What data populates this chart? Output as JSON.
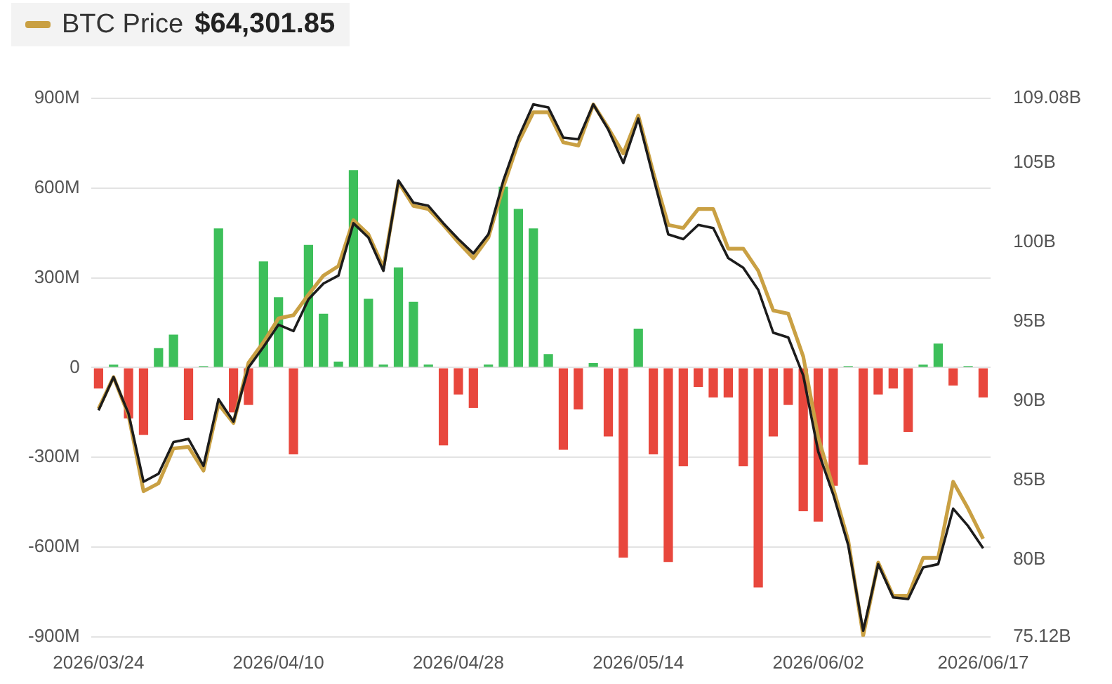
{
  "chart_data": {
    "type": "bar",
    "categories": [
      "2026/03/24",
      null,
      null,
      null,
      null,
      null,
      null,
      null,
      null,
      null,
      null,
      null,
      "2026/04/10",
      null,
      null,
      null,
      null,
      null,
      null,
      null,
      null,
      null,
      null,
      null,
      "2026/04/28",
      null,
      null,
      null,
      null,
      null,
      null,
      null,
      null,
      null,
      null,
      null,
      "2026/05/14",
      null,
      null,
      null,
      null,
      null,
      null,
      null,
      null,
      null,
      null,
      null,
      "2026/06/02",
      null,
      null,
      null,
      null,
      null,
      null,
      null,
      null,
      null,
      null,
      "2026/06/17"
    ],
    "series": [
      {
        "values": [
          -70,
          10,
          -170,
          -225,
          65,
          110,
          -175,
          5,
          465,
          -150,
          -125,
          355,
          235,
          -290,
          410,
          180,
          20,
          660,
          230,
          10,
          335,
          220,
          10,
          -260,
          -90,
          -135,
          10,
          605,
          530,
          465,
          45,
          -275,
          -140,
          15,
          -230,
          -635,
          130,
          -290,
          -650,
          -330,
          -65,
          -100,
          -100,
          -330,
          -735,
          -230,
          -125,
          -480,
          -515,
          -395,
          5,
          -325,
          -90,
          -70,
          -215,
          10,
          80,
          -60,
          5,
          -100
        ],
        "colors": [
          "#e8473d",
          "#3dbf5a",
          "#e8473d",
          "#e8473d",
          "#3dbf5a",
          "#3dbf5a",
          "#e8473d",
          "#3dbf5a",
          "#3dbf5a",
          "#e8473d",
          "#e8473d",
          "#3dbf5a",
          "#3dbf5a",
          "#e8473d",
          "#3dbf5a",
          "#3dbf5a",
          "#3dbf5a",
          "#3dbf5a",
          "#3dbf5a",
          "#3dbf5a",
          "#3dbf5a",
          "#3dbf5a",
          "#3dbf5a",
          "#e8473d",
          "#e8473d",
          "#e8473d",
          "#3dbf5a",
          "#3dbf5a",
          "#3dbf5a",
          "#3dbf5a",
          "#3dbf5a",
          "#e8473d",
          "#e8473d",
          "#3dbf5a",
          "#e8473d",
          "#e8473d",
          "#3dbf5a",
          "#e8473d",
          "#e8473d",
          "#e8473d",
          "#e8473d",
          "#e8473d",
          "#e8473d",
          "#e8473d",
          "#e8473d",
          "#e8473d",
          "#e8473d",
          "#e8473d",
          "#e8473d",
          "#e8473d",
          "#3dbf5a",
          "#e8473d",
          "#e8473d",
          "#e8473d",
          "#e8473d",
          "#3dbf5a",
          "#3dbf5a",
          "#e8473d",
          "#3dbf5a",
          "#e8473d"
        ]
      },
      {
        "type": "line",
        "axis": "y2",
        "color": "#1c1c1c",
        "values": [
          89.4,
          91.5,
          89.2,
          84.9,
          85.4,
          87.4,
          87.6,
          85.9,
          90.1,
          88.7,
          92.1,
          93.4,
          94.8,
          94.4,
          96.4,
          97.4,
          97.9,
          101.2,
          100.3,
          98.2,
          103.9,
          102.5,
          102.3,
          101.2,
          100.2,
          99.3,
          100.5,
          103.9,
          106.6,
          108.7,
          108.5,
          106.6,
          106.5,
          108.7,
          107.1,
          105.0,
          107.8,
          104.1,
          100.5,
          100.2,
          101.1,
          100.9,
          99.0,
          98.4,
          97.0,
          94.3,
          94.0,
          91.6,
          86.8,
          84.1,
          80.9,
          75.5,
          79.7,
          77.6,
          77.5,
          79.5,
          79.7,
          83.2,
          82.1,
          80.7
        ]
      },
      {
        "type": "line",
        "axis": "y2",
        "name": "BTC Price",
        "color": "#c9a043",
        "values": [
          89.5,
          91.5,
          89.1,
          84.3,
          84.8,
          87.0,
          87.1,
          85.6,
          89.8,
          88.6,
          92.4,
          93.7,
          95.2,
          95.4,
          96.7,
          97.9,
          98.5,
          101.4,
          100.5,
          98.4,
          103.8,
          102.3,
          102.1,
          101.1,
          100.0,
          99.0,
          100.3,
          103.5,
          106.3,
          108.2,
          108.2,
          106.3,
          106.1,
          108.7,
          107.2,
          105.6,
          108.0,
          104.4,
          101.1,
          100.9,
          102.1,
          102.1,
          99.6,
          99.6,
          98.2,
          95.7,
          95.5,
          92.8,
          87.7,
          84.5,
          81.2,
          75.2,
          79.8,
          77.7,
          77.7,
          80.1,
          80.1,
          84.9,
          83.2,
          81.3
        ]
      }
    ],
    "ylim": [
      -900,
      900
    ],
    "yticks": [
      {
        "value": -900,
        "label": "-900M"
      },
      {
        "value": -600,
        "label": "-600M"
      },
      {
        "value": -300,
        "label": "-300M"
      },
      0,
      {
        "value": 300,
        "label": "300M"
      },
      {
        "value": 600,
        "label": "600M"
      },
      {
        "value": 900,
        "label": "900M"
      }
    ],
    "y2lim": [
      75.12,
      109.08
    ],
    "y2ticks": [
      {
        "value": 75.12,
        "label": "75.12B"
      },
      {
        "value": 80,
        "label": "80B"
      },
      {
        "value": 85,
        "label": "85B"
      },
      {
        "value": 90,
        "label": "90B"
      },
      {
        "value": 95,
        "label": "95B"
      },
      {
        "value": 100,
        "label": "100B"
      },
      {
        "value": 105,
        "label": "105B"
      },
      {
        "value": 109.08,
        "label": "109.08B"
      }
    ],
    "annotations": [
      "$64,301.85"
    ],
    "grid": "y",
    "legend": "top left",
    "marker": "none"
  }
}
